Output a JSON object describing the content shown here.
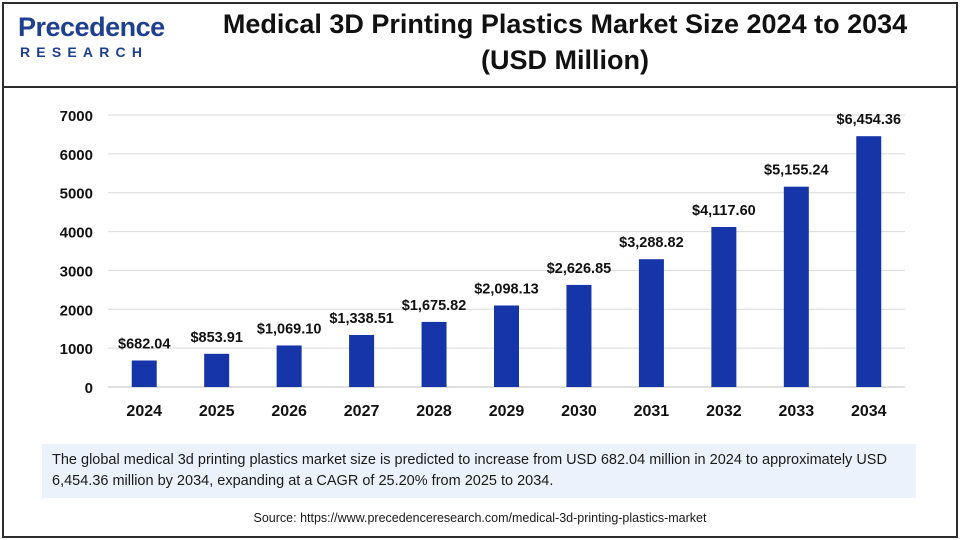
{
  "brand": {
    "logo_main": "recedence",
    "logo_initial": "P",
    "logo_sub": "RESEARCH",
    "color": "#1f3f8f"
  },
  "title": {
    "line1": "Medical 3D Printing Plastics Market Size 2024 to 2034",
    "line2": "(USD Million)"
  },
  "chart_data": {
    "type": "bar",
    "categories": [
      "2024",
      "2025",
      "2026",
      "2027",
      "2028",
      "2029",
      "2030",
      "2031",
      "2032",
      "2033",
      "2034"
    ],
    "values": [
      682.04,
      853.91,
      1069.1,
      1338.51,
      1675.82,
      2098.13,
      2626.85,
      3288.82,
      4117.6,
      5155.24,
      6454.36
    ],
    "data_labels": [
      "$682.04",
      "$853.91",
      "$1,069.10",
      "$1,338.51",
      "$1,675.82",
      "$2,098.13",
      "$2,626.85",
      "$3,288.82",
      "$4,117.60",
      "$5,155.24",
      "$6,454.36"
    ],
    "ylim": [
      0,
      7000
    ],
    "yticks": [
      0,
      1000,
      2000,
      3000,
      4000,
      5000,
      6000,
      7000
    ],
    "grid": true,
    "bar_color": "#1535a8",
    "grid_color": "#d9d9d9",
    "xlabel": "",
    "ylabel": ""
  },
  "description": "The global medical 3d printing plastics market size is predicted to increase from USD 682.04 million in 2024 to approximately USD 6,454.36 million by 2034, expanding at a CAGR of 25.20% from 2025 to 2034.",
  "source": "Source: https://www.precedenceresearch.com/medical-3d-printing-plastics-market"
}
